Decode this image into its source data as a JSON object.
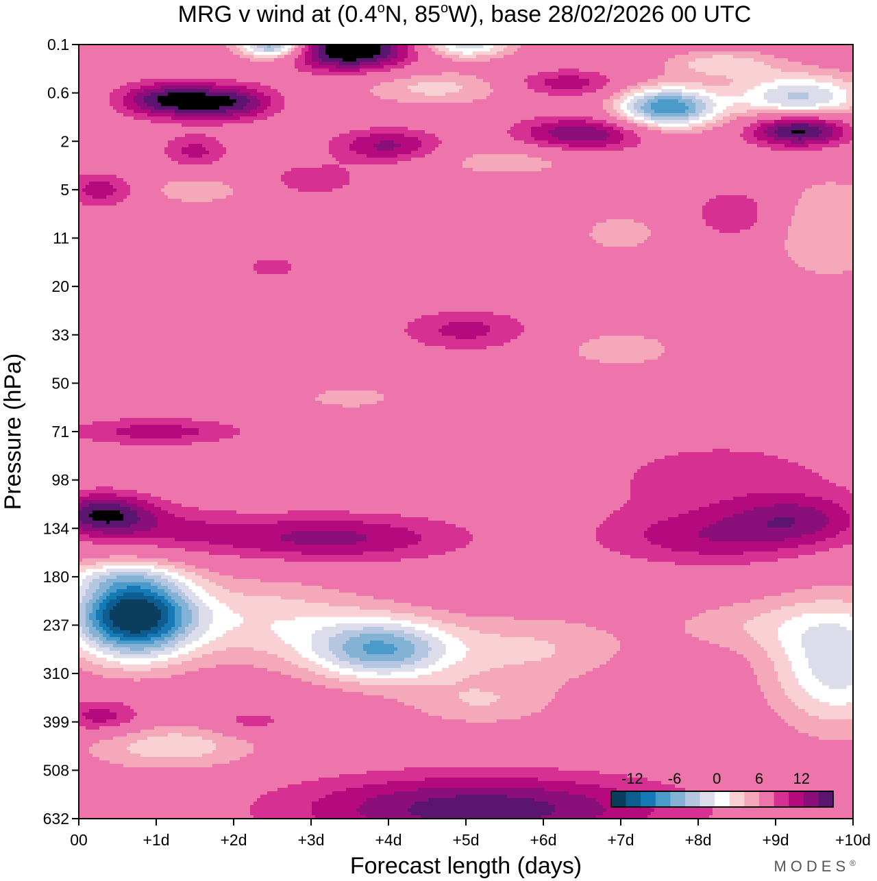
{
  "chart_data": {
    "type": "heatmap",
    "title": "MRG v wind at (0.4°N, 85°W),  base 28/02/2026  00 UTC",
    "title_main": "MRG v wind at (0.4",
    "title_lat": "N, 85",
    "title_lon": "W),  base 28/02/2026  00 UTC",
    "degree": "o",
    "xlabel": "Forecast length (days)",
    "ylabel": "Pressure (hPa)",
    "x_ticks": [
      "00",
      "+1d",
      "+2d",
      "+3d",
      "+4d",
      "+5d",
      "+6d",
      "+7d",
      "+8d",
      "+9d",
      "+10d"
    ],
    "xlim": [
      0,
      10
    ],
    "y_ticks": [
      "0.1",
      "0.6",
      "2",
      "5",
      "11",
      "20",
      "33",
      "50",
      "71",
      "98",
      "134",
      "180",
      "237",
      "310",
      "399",
      "508",
      "632"
    ],
    "colorbar": {
      "ticks": [
        "-12",
        "-6",
        "0",
        "6",
        "12"
      ],
      "tick_values": [
        -12,
        -6,
        0,
        6,
        12
      ],
      "levels": [
        -15,
        -13.5,
        -12,
        -10.5,
        -9,
        -7.5,
        -6,
        -4.5,
        -3,
        -1.5,
        1.5,
        3,
        4.5,
        6,
        7.5,
        9,
        10.5,
        12,
        13.5
      ],
      "colors": [
        "#0a3d5e",
        "#0e5d91",
        "#1579b5",
        "#4a9bc9",
        "#83b2d5",
        "#b5c7e0",
        "#dcdcea",
        "#ffffff",
        "#f9d1d4",
        "#f4a8b9",
        "#ee74ac",
        "#d63192",
        "#b50a7e",
        "#8a0f7a",
        "#5b1470"
      ]
    },
    "features": [
      {
        "day": 0.7,
        "level": 11.8,
        "amp": -17,
        "sd": 0.55,
        "sl": 0.6
      },
      {
        "day": 2.4,
        "level": 11.9,
        "amp": -4,
        "sd": 0.9,
        "sl": 0.6
      },
      {
        "day": 3.9,
        "level": 12.5,
        "amp": -10,
        "sd": 0.65,
        "sl": 0.45
      },
      {
        "day": 5.8,
        "level": 12.5,
        "amp": -3.2,
        "sd": 0.9,
        "sl": 0.5
      },
      {
        "day": 5.2,
        "level": 13.6,
        "amp": -2.8,
        "sd": 0.7,
        "sl": 0.35
      },
      {
        "day": 9.8,
        "level": 12.8,
        "amp": -7,
        "sd": 0.6,
        "sl": 0.9
      },
      {
        "day": 8.8,
        "level": 12.0,
        "amp": -2.4,
        "sd": 0.9,
        "sl": 0.4
      },
      {
        "day": 1.2,
        "level": 14.5,
        "amp": -4,
        "sd": 0.8,
        "sl": 0.35
      },
      {
        "day": 0.3,
        "level": 9.7,
        "amp": 7,
        "sd": 0.45,
        "sl": 0.3
      },
      {
        "day": 3.2,
        "level": 10.2,
        "amp": 5,
        "sd": 1.2,
        "sl": 0.35
      },
      {
        "day": 1.0,
        "level": 10.0,
        "amp": 2.5,
        "sd": 0.7,
        "sl": 0.35
      },
      {
        "day": 8.2,
        "level": 10.2,
        "amp": 3.8,
        "sd": 1.0,
        "sl": 0.4
      },
      {
        "day": 9.3,
        "level": 9.8,
        "amp": 3.8,
        "sd": 0.6,
        "sl": 0.35
      },
      {
        "day": 8.3,
        "level": 9.0,
        "amp": 2.2,
        "sd": 1.3,
        "sl": 0.7
      },
      {
        "day": 1.0,
        "level": 8.0,
        "amp": 3.8,
        "sd": 0.8,
        "sl": 0.2
      },
      {
        "day": 0.3,
        "level": 13.9,
        "amp": 4,
        "sd": 0.4,
        "sl": 0.25
      },
      {
        "day": 2.2,
        "level": 14.0,
        "amp": 2.5,
        "sd": 0.4,
        "sl": 0.2
      },
      {
        "day": 5.2,
        "level": 15.8,
        "amp": 7,
        "sd": 1.7,
        "sl": 0.5
      },
      {
        "day": 3.5,
        "level": 0.1,
        "amp": 10,
        "sd": 0.55,
        "sl": 0.3
      },
      {
        "day": 2.5,
        "level": 0.0,
        "amp": -11,
        "sd": 0.3,
        "sl": 0.2
      },
      {
        "day": 5.0,
        "level": 0.0,
        "amp": -7,
        "sd": 0.4,
        "sl": 0.2
      },
      {
        "day": 1.2,
        "level": 1.15,
        "amp": 8,
        "sd": 0.45,
        "sl": 0.25
      },
      {
        "day": 2.0,
        "level": 1.2,
        "amp": 6,
        "sd": 0.4,
        "sl": 0.25
      },
      {
        "day": 7.6,
        "level": 1.3,
        "amp": -12,
        "sd": 0.45,
        "sl": 0.3
      },
      {
        "day": 9.3,
        "level": 1.1,
        "amp": -8,
        "sd": 0.6,
        "sl": 0.35
      },
      {
        "day": 8.3,
        "level": 0.4,
        "amp": -4,
        "sd": 0.5,
        "sl": 0.2
      },
      {
        "day": 9.3,
        "level": 1.75,
        "amp": 9,
        "sd": 0.45,
        "sl": 0.25
      },
      {
        "day": 6.5,
        "level": 1.85,
        "amp": 6,
        "sd": 0.6,
        "sl": 0.25
      },
      {
        "day": 4.0,
        "level": 2.1,
        "amp": 5,
        "sd": 0.5,
        "sl": 0.25
      },
      {
        "day": 6.3,
        "level": 0.8,
        "amp": 4,
        "sd": 0.5,
        "sl": 0.2
      },
      {
        "day": 4.6,
        "level": 0.9,
        "amp": -3.5,
        "sd": 0.7,
        "sl": 0.25
      },
      {
        "day": 0.3,
        "level": 3.0,
        "amp": 4,
        "sd": 0.35,
        "sl": 0.25
      },
      {
        "day": 1.5,
        "level": 2.2,
        "amp": 3.5,
        "sd": 0.3,
        "sl": 0.25
      },
      {
        "day": 8.5,
        "level": 3.5,
        "amp": 3,
        "sd": 0.4,
        "sl": 0.4
      },
      {
        "day": 5.0,
        "level": 5.9,
        "amp": 3.5,
        "sd": 0.6,
        "sl": 0.3
      },
      {
        "day": 3.0,
        "level": 2.8,
        "amp": 2.5,
        "sd": 0.5,
        "sl": 0.25
      },
      {
        "day": 9.7,
        "level": 3.8,
        "amp": -3,
        "sd": 0.6,
        "sl": 0.8
      },
      {
        "day": 7.0,
        "level": 6.3,
        "amp": -2.4,
        "sd": 0.6,
        "sl": 0.3
      },
      {
        "day": 7.0,
        "level": 3.9,
        "amp": -2.4,
        "sd": 0.4,
        "sl": 0.3
      },
      {
        "day": 5.5,
        "level": 2.4,
        "amp": -2.4,
        "sd": 0.8,
        "sl": 0.25
      },
      {
        "day": 1.5,
        "level": 3.0,
        "amp": -2.4,
        "sd": 0.6,
        "sl": 0.25
      },
      {
        "day": 0.4,
        "level": 11.0,
        "amp": -2.4,
        "sd": 0.6,
        "sl": 0.2
      },
      {
        "day": 3.5,
        "level": 7.3,
        "amp": -2.2,
        "sd": 0.5,
        "sl": 0.2
      },
      {
        "day": 2.5,
        "level": 4.6,
        "amp": 2.2,
        "sd": 0.3,
        "sl": 0.2
      }
    ]
  },
  "logo": {
    "text": "MODES",
    "mark": "®"
  }
}
